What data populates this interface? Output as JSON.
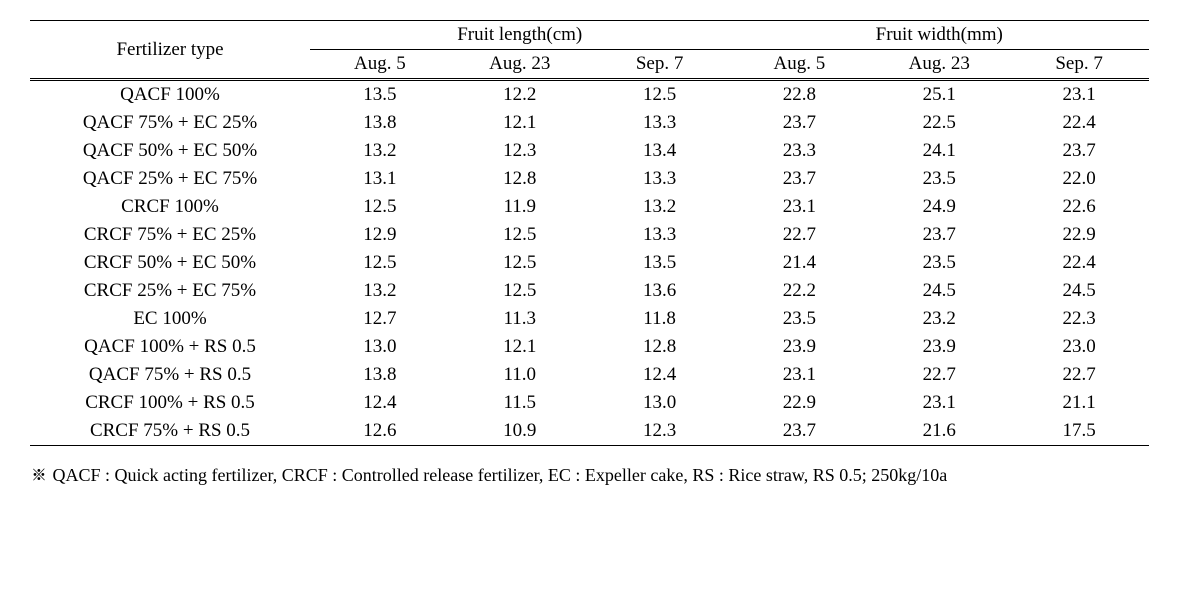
{
  "table": {
    "header": {
      "fertilizer_type": "Fertilizer type",
      "fruit_length": "Fruit length(cm)",
      "fruit_width": "Fruit width(mm)",
      "dates": [
        "Aug. 5",
        "Aug. 23",
        "Sep. 7"
      ]
    },
    "rows": [
      {
        "label": "QACF 100%",
        "len": [
          "13.5",
          "12.2",
          "12.5"
        ],
        "wid": [
          "22.8",
          "25.1",
          "23.1"
        ]
      },
      {
        "label": "QACF 75% + EC 25%",
        "len": [
          "13.8",
          "12.1",
          "13.3"
        ],
        "wid": [
          "23.7",
          "22.5",
          "22.4"
        ]
      },
      {
        "label": "QACF 50% + EC 50%",
        "len": [
          "13.2",
          "12.3",
          "13.4"
        ],
        "wid": [
          "23.3",
          "24.1",
          "23.7"
        ]
      },
      {
        "label": "QACF 25% + EC 75%",
        "len": [
          "13.1",
          "12.8",
          "13.3"
        ],
        "wid": [
          "23.7",
          "23.5",
          "22.0"
        ]
      },
      {
        "label": "CRCF 100%",
        "len": [
          "12.5",
          "11.9",
          "13.2"
        ],
        "wid": [
          "23.1",
          "24.9",
          "22.6"
        ]
      },
      {
        "label": "CRCF 75% + EC 25%",
        "len": [
          "12.9",
          "12.5",
          "13.3"
        ],
        "wid": [
          "22.7",
          "23.7",
          "22.9"
        ]
      },
      {
        "label": "CRCF 50% + EC 50%",
        "len": [
          "12.5",
          "12.5",
          "13.5"
        ],
        "wid": [
          "21.4",
          "23.5",
          "22.4"
        ]
      },
      {
        "label": "CRCF 25% + EC 75%",
        "len": [
          "13.2",
          "12.5",
          "13.6"
        ],
        "wid": [
          "22.2",
          "24.5",
          "24.5"
        ]
      },
      {
        "label": "EC 100%",
        "len": [
          "12.7",
          "11.3",
          "11.8"
        ],
        "wid": [
          "23.5",
          "23.2",
          "22.3"
        ]
      },
      {
        "label": "QACF 100% + RS 0.5",
        "len": [
          "13.0",
          "12.1",
          "12.8"
        ],
        "wid": [
          "23.9",
          "23.9",
          "23.0"
        ]
      },
      {
        "label": "QACF 75% + RS 0.5",
        "len": [
          "13.8",
          "11.0",
          "12.4"
        ],
        "wid": [
          "23.1",
          "22.7",
          "22.7"
        ]
      },
      {
        "label": "CRCF 100% + RS 0.5",
        "len": [
          "12.4",
          "11.5",
          "13.0"
        ],
        "wid": [
          "22.9",
          "23.1",
          "21.1"
        ]
      },
      {
        "label": "CRCF 75% + RS 0.5",
        "len": [
          "12.6",
          "10.9",
          "12.3"
        ],
        "wid": [
          "23.7",
          "21.6",
          "17.5"
        ]
      }
    ]
  },
  "footnote": "※ QACF  : Quick acting fertilizer, CRCF : Controlled release fertilizer, EC : Expeller cake, RS : Rice straw, RS 0.5; 250kg/10a"
}
